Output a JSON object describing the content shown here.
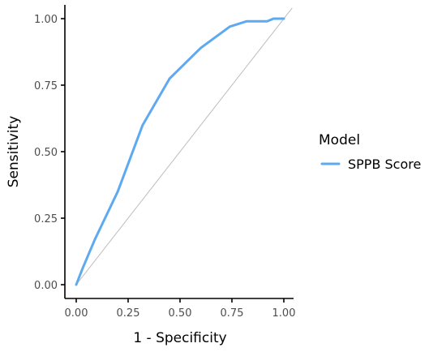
{
  "chart_data": {
    "type": "line",
    "xlabel": "1 - Specificity",
    "ylabel": "Sensitivity",
    "xlim": [
      0,
      1
    ],
    "ylim": [
      0,
      1
    ],
    "x_ticks": [
      "0.00",
      "0.25",
      "0.50",
      "0.75",
      "1.00"
    ],
    "y_ticks": [
      "0.00",
      "0.25",
      "0.50",
      "0.75",
      "1.00"
    ],
    "grid": false,
    "reference_line": {
      "from": [
        0,
        0
      ],
      "to": [
        1,
        1
      ],
      "color": "#bdbdbd"
    },
    "legend": {
      "title": "Model",
      "placement": "right"
    },
    "series": [
      {
        "name": "SPPB Score",
        "color": "#5eaaf0",
        "x": [
          0.0,
          0.03,
          0.09,
          0.2,
          0.32,
          0.45,
          0.6,
          0.74,
          0.82,
          0.84,
          0.92,
          0.95,
          0.97,
          1.0
        ],
        "y": [
          0.0,
          0.06,
          0.17,
          0.35,
          0.6,
          0.775,
          0.89,
          0.97,
          0.99,
          0.99,
          0.99,
          1.0,
          1.0,
          1.0
        ]
      }
    ]
  }
}
